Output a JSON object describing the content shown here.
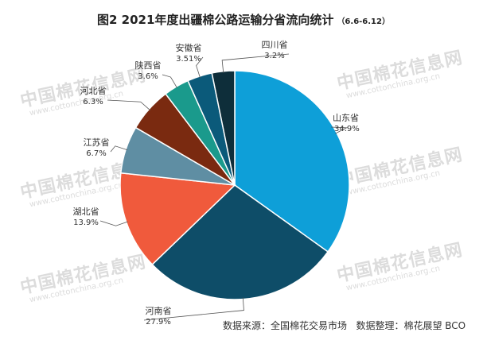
{
  "chart_data": {
    "type": "pie",
    "title": "图2 2021年度出疆棉公路运输分省流向统计",
    "subtitle": "（6.6-6.12）",
    "source_text": "数据来源：全国棉花交易市场",
    "compiler_text": "数据整理：棉花展望 BCO",
    "watermark": {
      "name": "中国棉花信息网",
      "url": "www.cottonchina.org.cn"
    },
    "slices": [
      {
        "name": "山东省",
        "value_label": "34.9%",
        "value": 34.9,
        "color": "#0e9fd8"
      },
      {
        "name": "河南省",
        "value_label": "27.9%",
        "value": 27.9,
        "color": "#0e4d68"
      },
      {
        "name": "湖北省",
        "value_label": "13.9%",
        "value": 13.9,
        "color": "#f05a3c"
      },
      {
        "name": "江苏省",
        "value_label": "6.7%",
        "value": 6.7,
        "color": "#5f8ea3"
      },
      {
        "name": "河北省",
        "value_label": "6.3%",
        "value": 6.3,
        "color": "#7a2a10"
      },
      {
        "name": "陕西省",
        "value_label": "3.6%",
        "value": 3.6,
        "color": "#1a9a8c"
      },
      {
        "name": "安徽省",
        "value_label": "3.51%",
        "value": 3.51,
        "color": "#0b5a7a"
      },
      {
        "name": "四川省",
        "value_label": "3.2%",
        "value": 3.2,
        "color": "#0e2e3a"
      }
    ]
  }
}
